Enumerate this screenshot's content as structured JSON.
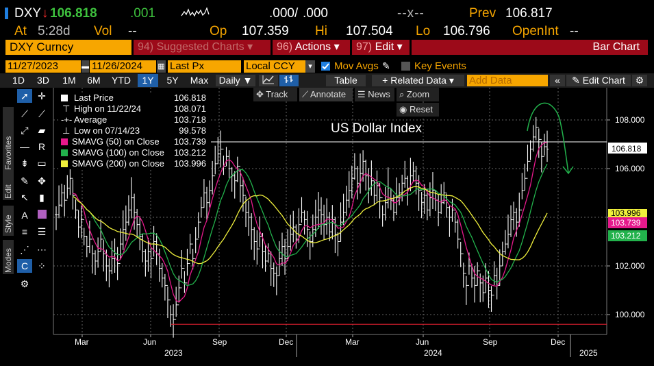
{
  "quote": {
    "ticker": "DXY",
    "arrow": "↓",
    "last": "106.818",
    "change": ".001",
    "bid": ".000",
    "slash": "/",
    "ask": ".000",
    "size": "--x--",
    "prev_label": "Prev",
    "prev": "106.817",
    "at_label": "At",
    "time": "5:28d",
    "vol_label": "Vol",
    "vol": "--",
    "op_label": "Op",
    "op": "107.359",
    "hi_label": "Hi",
    "hi": "107.504",
    "lo_label": "Lo",
    "lo": "106.796",
    "oi_label": "OpenInt",
    "oi": "--"
  },
  "command_bar": {
    "security": "DXY Curncy",
    "suggested_num": "94)",
    "suggested": "Suggested Charts",
    "actions_num": "96)",
    "actions": "Actions",
    "edit_num": "97)",
    "edit": "Edit",
    "chart_type": "Bar Chart"
  },
  "options": {
    "start_date": "11/27/2023",
    "end_date": "11/26/2024",
    "field": "Last Px",
    "currency": "Local CCY",
    "mov_avgs": "Mov Avgs",
    "key_events": "Key Events"
  },
  "periods": {
    "items": [
      "1D",
      "3D",
      "1M",
      "6M",
      "YTD",
      "1Y",
      "5Y",
      "Max"
    ],
    "selected": "1Y",
    "frequency": "Daily",
    "table": "Table",
    "related": "Related Data",
    "add_data_placeholder": "Add Data",
    "edit_chart": "Edit Chart"
  },
  "track_bar": {
    "track": "Track",
    "annotate": "Annotate",
    "news": "News",
    "zoom": "Zoom",
    "reset": "Reset"
  },
  "side_tabs": {
    "favorites": "Favorites",
    "edit": "Edit",
    "style": "Style",
    "modes": "Modes"
  },
  "legend": [
    {
      "name": "Last Price",
      "value": "106.818",
      "color": "#ffffff",
      "kind": "box"
    },
    {
      "name": "High on 11/22/24",
      "value": "108.071",
      "color": "#ffffff",
      "kind": "high"
    },
    {
      "name": "Average",
      "value": "103.718",
      "color": "#ffffff",
      "kind": "avg"
    },
    {
      "name": "Low on 07/14/23",
      "value": "99.578",
      "color": "#ffffff",
      "kind": "low"
    },
    {
      "name": "SMAVG (50)  on Close",
      "value": "103.739",
      "color": "#e6198c",
      "kind": "box"
    },
    {
      "name": "SMAVG (100)  on Close",
      "value": "103.212",
      "color": "#22b24c",
      "kind": "box"
    },
    {
      "name": "SMAVG (200)  on Close",
      "value": "103.996",
      "color": "#f0f03c",
      "kind": "box"
    }
  ],
  "chart_data": {
    "type": "bar",
    "title": "US Dollar Index",
    "x_ticks": [
      "Mar",
      "Jun",
      "Sep",
      "Dec",
      "Mar",
      "Jun",
      "Sep",
      "Dec"
    ],
    "x_years": [
      "2023",
      "2024",
      "2025"
    ],
    "y_ticks": [
      "100.000",
      "102.000",
      "104.000",
      "106.000",
      "108.000"
    ],
    "ylim": [
      99.2,
      109.0
    ],
    "grid": true,
    "last_tag": "106.818",
    "ma_tags": [
      {
        "label": "103.996",
        "color": "#f0f03c"
      },
      {
        "label": "103.739",
        "color": "#e6198c"
      },
      {
        "label": "103.212",
        "color": "#22b24c"
      }
    ],
    "series_close": [
      104.1,
      104.5,
      105.0,
      104.7,
      105.2,
      105.6,
      104.9,
      104.3,
      103.6,
      103.9,
      103.2,
      102.8,
      103.1,
      102.5,
      102.2,
      102.6,
      103.1,
      102.5,
      102.0,
      101.8,
      102.3,
      102.5,
      102.1,
      102.9,
      103.5,
      103.8,
      104.3,
      104.8,
      104.2,
      103.7,
      103.2,
      102.6,
      102.2,
      102.6,
      102.3,
      103.0,
      102.5,
      101.9,
      101.5,
      101.2,
      100.6,
      100.0,
      99.8,
      100.4,
      101.1,
      101.9,
      101.3,
      102.1,
      102.9,
      102.3,
      103.1,
      103.8,
      104.4,
      105.0,
      104.6,
      105.1,
      105.7,
      106.2,
      106.6,
      106.8,
      106.1,
      106.5,
      106.0,
      105.7,
      105.5,
      106.1,
      105.3,
      104.9,
      104.2,
      104.0,
      103.5,
      103.0,
      102.7,
      103.2,
      102.6,
      102.2,
      102.5,
      101.9,
      101.7,
      101.6,
      102.3,
      102.8,
      102.3,
      102.8,
      103.3,
      103.6,
      103.1,
      103.7,
      104.2,
      103.9,
      103.5,
      103.0,
      103.5,
      104.0,
      104.3,
      104.1,
      103.7,
      104.0,
      103.4,
      103.9,
      103.3,
      103.0,
      103.8,
      104.2,
      104.7,
      105.1,
      105.6,
      106.0,
      105.4,
      105.8,
      106.3,
      105.7,
      105.2,
      105.5,
      104.9,
      105.3,
      104.8,
      104.1,
      104.6,
      105.2,
      104.7,
      104.2,
      104.8,
      105.0,
      105.4,
      105.6,
      105.2,
      105.7,
      105.9,
      105.4,
      105.1,
      104.6,
      104.9,
      104.3,
      104.8,
      105.1,
      104.7,
      104.2,
      104.6,
      105.0,
      104.4,
      104.0,
      104.3,
      103.8,
      103.1,
      102.5,
      101.7,
      101.2,
      102.0,
      101.5,
      101.2,
      101.8,
      101.3,
      100.9,
      101.5,
      101.0,
      100.8,
      101.6,
      101.2,
      102.0,
      102.6,
      102.9,
      103.3,
      103.9,
      104.2,
      103.8,
      104.3,
      105.1,
      105.6,
      106.3,
      106.8,
      107.3,
      107.7,
      107.2,
      106.5,
      106.9,
      106.8
    ]
  }
}
